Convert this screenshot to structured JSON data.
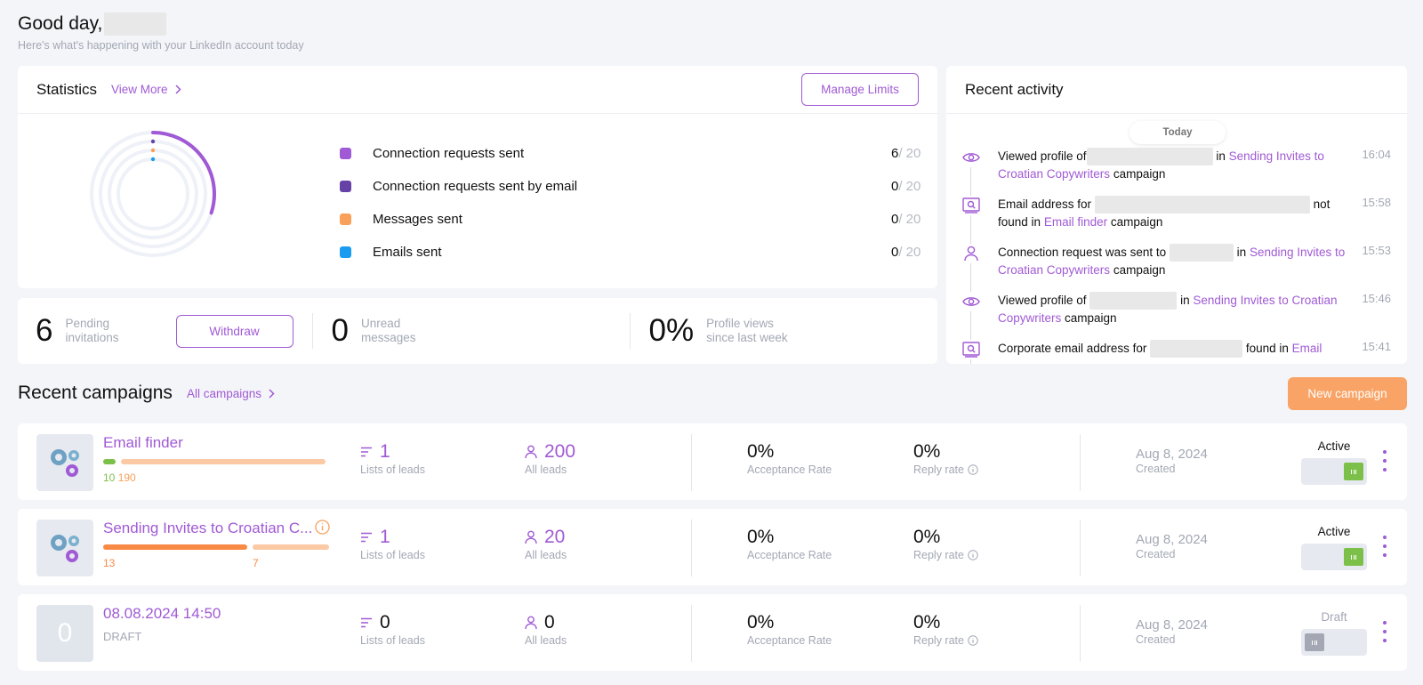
{
  "header": {
    "greeting": "Good day,",
    "subtitle": "Here's what's happening with your LinkedIn account today"
  },
  "stats": {
    "title": "Statistics",
    "view_more": "View More",
    "manage_limits": "Manage Limits",
    "items": [
      {
        "label": "Connection requests sent",
        "value": "6",
        "limit": "/ 20",
        "color": "#a05ad5"
      },
      {
        "label": "Connection requests sent by email",
        "value": "0",
        "limit": "/ 20",
        "color": "#6742a6"
      },
      {
        "label": "Messages sent",
        "value": "0",
        "limit": "/ 20",
        "color": "#f9a05a"
      },
      {
        "label": "Emails sent",
        "value": "0",
        "limit": "/ 20",
        "color": "#1a9cf0"
      }
    ]
  },
  "mini": {
    "pending_value": "6",
    "pending_label_1": "Pending",
    "pending_label_2": "invitations",
    "withdraw": "Withdraw",
    "unread_value": "0",
    "unread_label_1": "Unread",
    "unread_label_2": "messages",
    "views_value": "0%",
    "views_label_1": "Profile views",
    "views_label_2": "since last week"
  },
  "activity": {
    "title": "Recent activity",
    "today": "Today",
    "items": [
      {
        "icon": "eye-icon",
        "pre": "Viewed profile of",
        "mid": "in",
        "link": "Sending Invites to Croatian Copywriters",
        "post": "campaign",
        "time": "16:04"
      },
      {
        "icon": "email-search-icon",
        "pre": "Email address for",
        "mid": "not found in",
        "link": "Email finder",
        "post": "campaign",
        "time": "15:58"
      },
      {
        "icon": "person-icon",
        "pre": "Connection request was sent to",
        "mid": "in",
        "link": "Sending Invites to Croatian Copywriters",
        "post": "campaign",
        "time": "15:53"
      },
      {
        "icon": "eye-icon",
        "pre": "Viewed profile of",
        "mid": "in",
        "link": "Sending Invites to Croatian Copywriters",
        "post": "campaign",
        "time": "15:46"
      },
      {
        "icon": "email-search-icon",
        "pre": "Corporate email address for",
        "mid": "found in",
        "link": "Email",
        "post": "",
        "time": "15:41"
      }
    ]
  },
  "campaigns": {
    "title": "Recent campaigns",
    "all_link": "All campaigns",
    "new_button": "New campaign",
    "rows": [
      {
        "name": "Email finder",
        "sub_a": "10",
        "sub_b": "190",
        "lists": "1",
        "lists_label": "Lists of leads",
        "leads": "200",
        "leads_label": "All leads",
        "acceptance": "0%",
        "acceptance_label": "Acceptance Rate",
        "reply": "0%",
        "reply_label": "Reply rate",
        "date": "Aug 8, 2024",
        "created": "Created",
        "status": "Active",
        "active": true
      },
      {
        "name": "Sending Invites to Croatian C...",
        "sub_a": "13",
        "sub_b": "7",
        "lists": "1",
        "lists_label": "Lists of leads",
        "leads": "20",
        "leads_label": "All leads",
        "acceptance": "0%",
        "acceptance_label": "Acceptance Rate",
        "reply": "0%",
        "reply_label": "Reply rate",
        "date": "Aug 8, 2024",
        "created": "Created",
        "status": "Active",
        "active": true
      },
      {
        "name": "08.08.2024 14:50",
        "sub_a": "DRAFT",
        "thumb_text": "0",
        "lists": "0",
        "lists_label": "Lists of leads",
        "leads": "0",
        "leads_label": "All leads",
        "acceptance": "0%",
        "acceptance_label": "Acceptance Rate",
        "reply": "0%",
        "reply_label": "Reply rate",
        "date": "Aug 8, 2024",
        "created": "Created",
        "status": "Draft",
        "active": false
      }
    ]
  },
  "colors": {
    "accent": "#a05ad5",
    "orange": "#f9a466",
    "green": "#7cc04a"
  }
}
